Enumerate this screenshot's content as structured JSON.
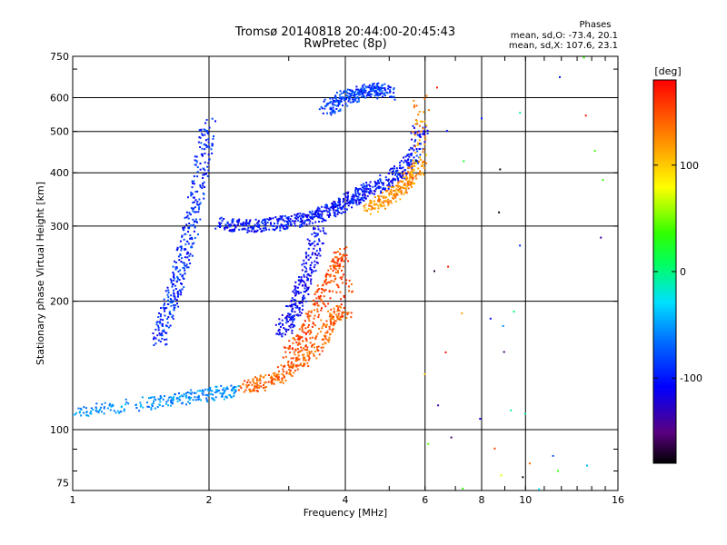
{
  "header": {
    "title_line1": "Tromsø 20140818 20:44:00-20:45:43",
    "title_line2": "RwPretec (8p)",
    "stats_title": "Phases",
    "stats_o": "mean, sd,O: -73.4, 20.1",
    "stats_x": "mean, sd,X: 107.6, 23.1"
  },
  "colorbar": {
    "unit_label": "[deg]",
    "tick_labels": [
      "100",
      "0",
      "-100"
    ],
    "tick_values": [
      100,
      0,
      -100
    ],
    "range": [
      -180,
      180
    ],
    "colormap": "rainbow (black-purple-blue-cyan-green-yellow-orange-red)"
  },
  "chart_data": {
    "type": "scatter",
    "xlabel": "Frequency [MHz]",
    "ylabel": "Stationary phase Virtual Height [km]",
    "x_scale": "log",
    "y_scale": "log",
    "xlim": [
      1,
      16
    ],
    "ylim": [
      72,
      750
    ],
    "grid": true,
    "x_ticks": [
      "1",
      "2",
      "4",
      "6",
      "8",
      "10",
      "16"
    ],
    "x_tick_values": [
      1,
      2,
      4,
      6,
      8,
      10,
      16
    ],
    "y_ticks": [
      "75",
      "100",
      "200",
      "300",
      "400",
      "500",
      "600",
      "750"
    ],
    "y_tick_values": [
      75,
      100,
      200,
      300,
      400,
      500,
      600,
      750
    ],
    "color_encodes": "phase [deg]",
    "series": [
      {
        "name": "O",
        "traces": [
          {
            "x": [
              1.0,
              1.2,
              1.5,
              1.7,
              1.9,
              2.1,
              2.3
            ],
            "y": [
              110,
              112,
              116,
              118,
              120,
              122,
              124
            ],
            "phase": -60
          },
          {
            "x": [
              1.55,
              1.6,
              1.65,
              1.7,
              1.75,
              1.8,
              1.85,
              1.9,
              1.95,
              2.0
            ],
            "y": [
              160,
              180,
              200,
              220,
              250,
              280,
              320,
              380,
              450,
              520
            ],
            "phase": -95
          },
          {
            "x": [
              2.1,
              2.3,
              2.5,
              2.7,
              2.9,
              3.1,
              3.3,
              3.5,
              3.7,
              3.9,
              4.1,
              4.3,
              4.5,
              4.8,
              5.1,
              5.4,
              5.7,
              5.9
            ],
            "y": [
              305,
              300,
              300,
              302,
              305,
              308,
              312,
              318,
              326,
              335,
              345,
              355,
              365,
              375,
              390,
              410,
              450,
              520
            ],
            "phase": -105
          },
          {
            "x": [
              2.9,
              3.0,
              3.1,
              3.2,
              3.3,
              3.4,
              3.5
            ],
            "y": [
              170,
              180,
              195,
              210,
              230,
              260,
              300
            ],
            "phase": -110
          },
          {
            "x": [
              3.6,
              3.8,
              4.0,
              4.2,
              4.4,
              4.6,
              4.8,
              5.0
            ],
            "y": [
              560,
              580,
              600,
              610,
              620,
              630,
              625,
              610
            ],
            "phase": -90
          }
        ]
      },
      {
        "name": "X",
        "traces": [
          {
            "x": [
              2.4,
              2.6,
              2.8,
              3.0,
              3.2,
              3.4,
              3.6,
              3.8,
              4.0
            ],
            "y": [
              125,
              128,
              132,
              138,
              145,
              155,
              170,
              185,
              190
            ],
            "phase": 140
          },
          {
            "x": [
              3.0,
              3.2,
              3.4,
              3.6,
              3.8,
              3.9,
              4.0
            ],
            "y": [
              150,
              165,
              185,
              210,
              240,
              260,
              200
            ],
            "phase": 150
          },
          {
            "x": [
              4.5,
              4.8,
              5.1,
              5.4,
              5.6,
              5.8,
              5.9
            ],
            "y": [
              330,
              340,
              355,
              370,
              390,
              420,
              600
            ],
            "phase": 120
          }
        ]
      }
    ]
  }
}
